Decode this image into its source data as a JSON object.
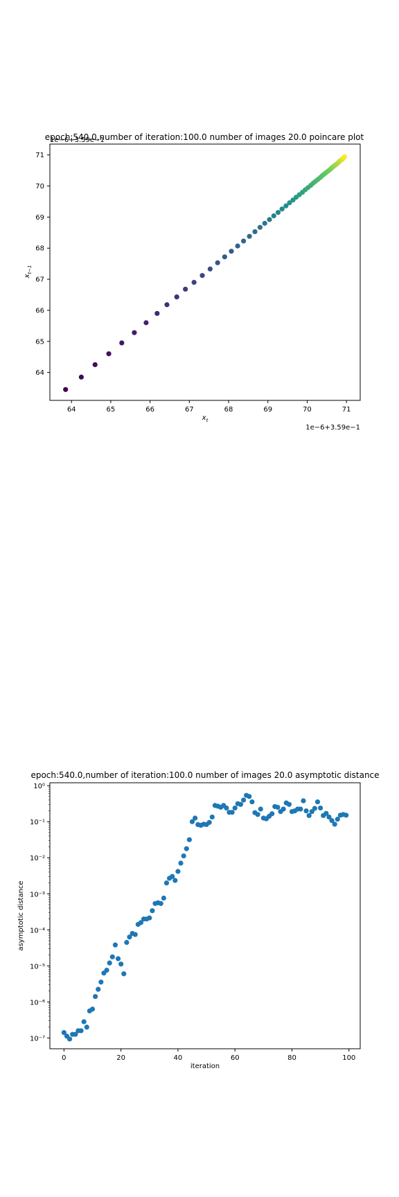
{
  "chart_data": [
    {
      "type": "scatter",
      "title": "epoch:540.0,number of iteration:100.0 number of images 20.0 poincare plot",
      "xlabel": "x_t",
      "ylabel": "x_{t-1}",
      "x_offset_label": "1e−6+3.59e−1",
      "y_offset_label": "1e−6+3.59e−1",
      "x_ticks": [
        64,
        65,
        66,
        67,
        68,
        69,
        70,
        71
      ],
      "y_ticks": [
        64,
        65,
        66,
        67,
        68,
        69,
        70,
        71
      ],
      "xlim": [
        63.45,
        71.35
      ],
      "ylim": [
        63.1,
        71.35
      ],
      "colormap": [
        "#440154",
        "#3b528b",
        "#21918c",
        "#5ec962",
        "#fde725"
      ],
      "points": [
        [
          63.85,
          63.45
        ],
        [
          64.25,
          63.85
        ],
        [
          64.6,
          64.25
        ],
        [
          64.95,
          64.6
        ],
        [
          65.28,
          64.95
        ],
        [
          65.6,
          65.28
        ],
        [
          65.9,
          65.6
        ],
        [
          66.18,
          65.9
        ],
        [
          66.43,
          66.18
        ],
        [
          66.68,
          66.43
        ],
        [
          66.9,
          66.68
        ],
        [
          67.12,
          66.9
        ],
        [
          67.33,
          67.12
        ],
        [
          67.53,
          67.33
        ],
        [
          67.72,
          67.53
        ],
        [
          67.9,
          67.72
        ],
        [
          68.07,
          67.9
        ],
        [
          68.23,
          68.07
        ],
        [
          68.38,
          68.23
        ],
        [
          68.53,
          68.38
        ],
        [
          68.67,
          68.53
        ],
        [
          68.8,
          68.67
        ],
        [
          68.92,
          68.8
        ],
        [
          69.04,
          68.92
        ],
        [
          69.15,
          69.04
        ],
        [
          69.26,
          69.15
        ],
        [
          69.36,
          69.26
        ],
        [
          69.46,
          69.36
        ],
        [
          69.55,
          69.46
        ],
        [
          69.64,
          69.55
        ],
        [
          69.72,
          69.64
        ],
        [
          69.8,
          69.72
        ],
        [
          69.88,
          69.8
        ],
        [
          69.95,
          69.88
        ],
        [
          70.02,
          69.95
        ],
        [
          70.09,
          70.02
        ],
        [
          70.15,
          70.09
        ],
        [
          70.21,
          70.15
        ],
        [
          70.27,
          70.21
        ],
        [
          70.33,
          70.27
        ],
        [
          70.38,
          70.33
        ],
        [
          70.43,
          70.38
        ],
        [
          70.48,
          70.43
        ],
        [
          70.53,
          70.48
        ],
        [
          70.58,
          70.53
        ],
        [
          70.62,
          70.58
        ],
        [
          70.66,
          70.62
        ],
        [
          70.7,
          70.66
        ],
        [
          70.74,
          70.7
        ],
        [
          70.78,
          70.74
        ],
        [
          70.81,
          70.78
        ],
        [
          70.84,
          70.81
        ],
        [
          70.87,
          70.84
        ],
        [
          70.9,
          70.87
        ],
        [
          70.92,
          70.9
        ],
        [
          70.94,
          70.92
        ],
        [
          70.95,
          70.94
        ]
      ]
    },
    {
      "type": "scatter",
      "title": "epoch:540.0,number of iteration:100.0  number of images 20.0 asymptotic distance",
      "xlabel": "iteration",
      "ylabel": "asymptotic distance",
      "yscale": "log",
      "color": "#1f77b4",
      "x_ticks": [
        0,
        20,
        40,
        60,
        80,
        100
      ],
      "y_ticks": [
        -7,
        -6,
        -5,
        -4,
        -3,
        -2,
        -1,
        0
      ],
      "y_tick_labels": [
        "10⁻⁷",
        "10⁻⁶",
        "10⁻⁵",
        "10⁻⁴",
        "10⁻³",
        "10⁻²",
        "10⁻¹",
        "10⁰"
      ],
      "xlim": [
        -4.95,
        103.95
      ],
      "ylim_log10": [
        -7.3,
        0.08
      ],
      "x": [
        0,
        1,
        2,
        3,
        4,
        5,
        6,
        7,
        8,
        9,
        10,
        11,
        12,
        13,
        14,
        15,
        16,
        17,
        18,
        19,
        20,
        21,
        22,
        23,
        24,
        25,
        26,
        27,
        28,
        29,
        30,
        31,
        32,
        33,
        34,
        35,
        36,
        37,
        38,
        39,
        40,
        41,
        42,
        43,
        44,
        45,
        46,
        47,
        48,
        49,
        50,
        51,
        52,
        53,
        54,
        55,
        56,
        57,
        58,
        59,
        60,
        61,
        62,
        63,
        64,
        65,
        66,
        67,
        68,
        69,
        70,
        71,
        72,
        73,
        74,
        75,
        76,
        77,
        78,
        79,
        80,
        81,
        82,
        83,
        84,
        85,
        86,
        87,
        88,
        89,
        90,
        91,
        92,
        93,
        94,
        95,
        96,
        97,
        98,
        99
      ],
      "log10_y": [
        -6.85,
        -6.95,
        -7.03,
        -6.9,
        -6.9,
        -6.8,
        -6.8,
        -6.55,
        -6.7,
        -6.25,
        -6.2,
        -5.85,
        -5.65,
        -5.45,
        -5.2,
        -5.12,
        -4.92,
        -4.75,
        -4.42,
        -4.8,
        -4.95,
        -5.22,
        -4.35,
        -4.2,
        -4.1,
        -4.13,
        -3.85,
        -3.8,
        -3.7,
        -3.7,
        -3.67,
        -3.47,
        -3.27,
        -3.25,
        -3.27,
        -3.12,
        -2.7,
        -2.57,
        -2.52,
        -2.63,
        -2.38,
        -2.15,
        -1.95,
        -1.75,
        -1.5,
        -1.0,
        -0.9,
        -1.08,
        -1.1,
        -1.07,
        -1.08,
        -1.02,
        -0.87,
        -0.55,
        -0.57,
        -0.6,
        -0.55,
        -0.62,
        -0.74,
        -0.74,
        -0.62,
        -0.5,
        -0.52,
        -0.4,
        -0.27,
        -0.3,
        -0.45,
        -0.75,
        -0.8,
        -0.65,
        -0.9,
        -0.92,
        -0.85,
        -0.78,
        -0.58,
        -0.6,
        -0.72,
        -0.65,
        -0.48,
        -0.52,
        -0.72,
        -0.7,
        -0.65,
        -0.65,
        -0.42,
        -0.7,
        -0.83,
        -0.72,
        -0.63,
        -0.45,
        -0.62,
        -0.83,
        -0.77,
        -0.87,
        -0.97,
        -1.07,
        -0.93,
        -0.82,
        -0.8,
        -0.82
      ]
    }
  ]
}
